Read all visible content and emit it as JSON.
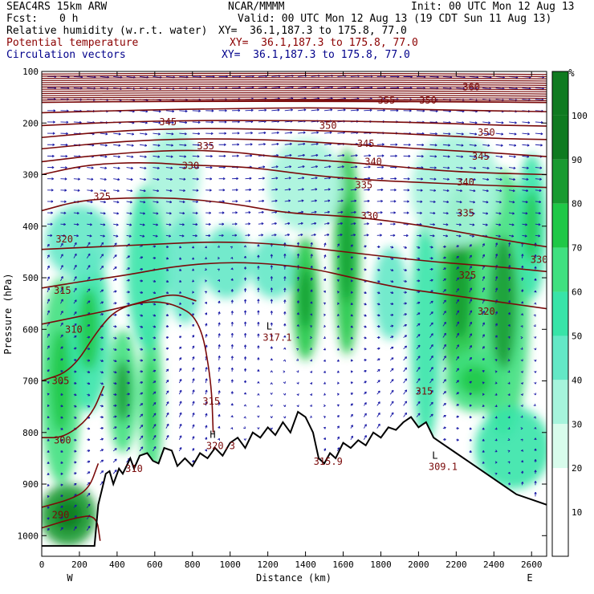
{
  "header": {
    "model": "SEAC4RS 15km ARW",
    "center": "NCAR/MMMM",
    "init": "Init: 00 UTC Mon 12 Aug 13",
    "fcst_label": "Fcst:",
    "fcst_value": "0 h",
    "valid": "Valid: 00 UTC Mon 12 Aug 13 (19 CDT Sun 11 Aug 13)"
  },
  "fields": [
    {
      "name": "Relative humidity (w.r.t. water)",
      "xy": "XY=  36.1,187.3 to 175.8, 77.0",
      "color": "#000000"
    },
    {
      "name": "Potential temperature",
      "xy": "XY=  36.1,187.3 to 175.8, 77.0",
      "color": "#8b0000"
    },
    {
      "name": "Circulation vectors",
      "xy": "XY=  36.1,187.3 to 175.8, 77.0",
      "color": "#00008b"
    }
  ],
  "chart_data": {
    "type": "heatmap",
    "xlabel": "Distance (km)",
    "ylabel": "Pressure (hPa)",
    "xlim": [
      0,
      2680
    ],
    "ylim": [
      1040,
      100
    ],
    "x_ticks": [
      0,
      200,
      400,
      600,
      800,
      1000,
      1200,
      1400,
      1600,
      1800,
      2000,
      2200,
      2400,
      2600
    ],
    "y_ticks": [
      100,
      200,
      300,
      400,
      500,
      600,
      700,
      800,
      900,
      1000
    ],
    "x_end_labels": {
      "left": "W",
      "right": "E"
    },
    "colorbar": {
      "unit": "%",
      "levels": [
        10,
        20,
        30,
        40,
        50,
        60,
        70,
        80,
        90,
        100
      ],
      "colors": [
        "#ffffff",
        "#ffffff",
        "#d8fcec",
        "#a6f4dc",
        "#64e8c6",
        "#38e4a8",
        "#40e080",
        "#1fc847",
        "#189a30",
        "#0f7a20"
      ]
    },
    "theta_contours": [
      {
        "value": 290,
        "points": [
          [
            0,
            985
          ],
          [
            180,
            965
          ],
          [
            290,
            960
          ],
          [
            310,
            1010
          ]
        ]
      },
      {
        "value": 295,
        "points": [
          [
            0,
            945
          ],
          [
            150,
            930
          ],
          [
            250,
            910
          ],
          [
            300,
            860
          ]
        ]
      },
      {
        "value": 300,
        "points": [
          [
            0,
            810
          ],
          [
            120,
            810
          ],
          [
            260,
            770
          ],
          [
            330,
            710
          ]
        ]
      },
      {
        "value": 305,
        "points": [
          [
            0,
            700
          ],
          [
            160,
            680
          ],
          [
            300,
            600
          ],
          [
            400,
            560
          ],
          [
            560,
            545
          ],
          [
            700,
            550
          ],
          [
            840,
            580
          ],
          [
            900,
            700
          ],
          [
            910,
            800
          ]
        ]
      },
      {
        "value": 310,
        "points": [
          [
            0,
            590
          ],
          [
            200,
            575
          ],
          [
            400,
            560
          ],
          [
            550,
            545
          ],
          [
            700,
            530
          ],
          [
            820,
            545
          ]
        ]
      },
      {
        "value": 315,
        "points": [
          [
            0,
            520
          ],
          [
            250,
            505
          ],
          [
            450,
            495
          ],
          [
            700,
            478
          ],
          [
            950,
            470
          ],
          [
            1200,
            472
          ],
          [
            1450,
            483
          ],
          [
            1650,
            500
          ],
          [
            1900,
            520
          ],
          [
            2100,
            530
          ],
          [
            2680,
            560
          ]
        ]
      },
      {
        "value": 320,
        "points": [
          [
            0,
            445
          ],
          [
            300,
            440
          ],
          [
            600,
            435
          ],
          [
            900,
            430
          ],
          [
            1200,
            433
          ],
          [
            1500,
            445
          ],
          [
            1800,
            458
          ],
          [
            2100,
            470
          ],
          [
            2400,
            478
          ],
          [
            2680,
            488
          ]
        ]
      },
      {
        "value": 325,
        "points": [
          [
            0,
            370
          ],
          [
            200,
            350
          ],
          [
            450,
            345
          ],
          [
            700,
            345
          ],
          [
            1000,
            355
          ],
          [
            1300,
            375
          ],
          [
            1600,
            380
          ],
          [
            1900,
            392
          ],
          [
            2200,
            410
          ],
          [
            2500,
            430
          ],
          [
            2680,
            440
          ]
        ]
      },
      {
        "value": 330,
        "points": [
          [
            0,
            300
          ],
          [
            250,
            280
          ],
          [
            550,
            276
          ],
          [
            800,
            282
          ],
          [
            1100,
            285
          ],
          [
            1400,
            300
          ],
          [
            1700,
            310
          ],
          [
            2000,
            315
          ],
          [
            2300,
            320
          ],
          [
            2680,
            325
          ]
        ]
      },
      {
        "value": 335,
        "points": [
          [
            0,
            275
          ],
          [
            300,
            262
          ],
          [
            700,
            252
          ],
          [
            1000,
            255
          ],
          [
            1300,
            268
          ],
          [
            1600,
            275
          ],
          [
            1900,
            285
          ],
          [
            2200,
            295
          ],
          [
            2680,
            300
          ]
        ]
      },
      {
        "value": 340,
        "points": [
          [
            0,
            250
          ],
          [
            400,
            236
          ],
          [
            800,
            230
          ],
          [
            1200,
            232
          ],
          [
            1600,
            240
          ],
          [
            2000,
            250
          ],
          [
            2400,
            258
          ],
          [
            2680,
            265
          ]
        ]
      },
      {
        "value": 345,
        "points": [
          [
            0,
            228
          ],
          [
            400,
            215
          ],
          [
            800,
            210
          ],
          [
            1200,
            212
          ],
          [
            1600,
            216
          ],
          [
            2000,
            222
          ],
          [
            2400,
            230
          ],
          [
            2680,
            232
          ]
        ]
      },
      {
        "value": 350,
        "points": [
          [
            0,
            205
          ],
          [
            400,
            198
          ],
          [
            800,
            195
          ],
          [
            1200,
            195
          ],
          [
            1600,
            196
          ],
          [
            2000,
            199
          ],
          [
            2400,
            204
          ],
          [
            2680,
            206
          ]
        ]
      },
      {
        "value": 355,
        "points": [
          [
            0,
            180
          ],
          [
            500,
            175
          ],
          [
            1000,
            172
          ],
          [
            1500,
            170
          ],
          [
            2000,
            174
          ],
          [
            2680,
            178
          ]
        ]
      },
      {
        "value": 360,
        "points": [
          [
            0,
            160
          ],
          [
            500,
            158
          ],
          [
            1000,
            157
          ],
          [
            1500,
            156
          ],
          [
            2000,
            158
          ],
          [
            2680,
            160
          ]
        ]
      }
    ],
    "contour_labels": [
      {
        "text": "345",
        "x": 670,
        "y": 198
      },
      {
        "text": "335",
        "x": 870,
        "y": 245
      },
      {
        "text": "330",
        "x": 790,
        "y": 283
      },
      {
        "text": "325",
        "x": 320,
        "y": 343
      },
      {
        "text": "320",
        "x": 120,
        "y": 425
      },
      {
        "text": "315",
        "x": 110,
        "y": 525
      },
      {
        "text": "310",
        "x": 170,
        "y": 600
      },
      {
        "text": "305",
        "x": 100,
        "y": 700
      },
      {
        "text": "300",
        "x": 110,
        "y": 815
      },
      {
        "text": "290",
        "x": 100,
        "y": 960
      },
      {
        "text": "350",
        "x": 1520,
        "y": 205
      },
      {
        "text": "345",
        "x": 1720,
        "y": 240
      },
      {
        "text": "340",
        "x": 1760,
        "y": 275
      },
      {
        "text": "335",
        "x": 1710,
        "y": 320
      },
      {
        "text": "330",
        "x": 1740,
        "y": 380
      },
      {
        "text": "335",
        "x": 2250,
        "y": 375
      },
      {
        "text": "340",
        "x": 2250,
        "y": 315
      },
      {
        "text": "345",
        "x": 2330,
        "y": 265
      },
      {
        "text": "350",
        "x": 2360,
        "y": 218
      },
      {
        "text": "355",
        "x": 1830,
        "y": 156
      },
      {
        "text": "350",
        "x": 2050,
        "y": 156
      },
      {
        "text": "360",
        "x": 2280,
        "y": 130
      },
      {
        "text": "325",
        "x": 2260,
        "y": 495
      },
      {
        "text": "320",
        "x": 2360,
        "y": 565
      },
      {
        "text": "330",
        "x": 2640,
        "y": 465
      },
      {
        "text": "315",
        "x": 900,
        "y": 740
      },
      {
        "text": "315",
        "x": 2030,
        "y": 720
      },
      {
        "text": "310",
        "x": 490,
        "y": 870
      }
    ],
    "extrema_labels": [
      {
        "mark": "L",
        "value": "317.1",
        "x": 1250,
        "y": 610
      },
      {
        "mark": "H",
        "value": "320.3",
        "x": 950,
        "y": 820
      },
      {
        "mark": "",
        "value": "315.9",
        "x": 1520,
        "y": 850
      },
      {
        "mark": "L",
        "value": "309.1",
        "x": 2130,
        "y": 860
      }
    ],
    "terrain": [
      [
        0,
        1020
      ],
      [
        280,
        1020
      ],
      [
        300,
        940
      ],
      [
        340,
        880
      ],
      [
        360,
        875
      ],
      [
        380,
        900
      ],
      [
        410,
        870
      ],
      [
        430,
        880
      ],
      [
        470,
        850
      ],
      [
        490,
        870
      ],
      [
        520,
        845
      ],
      [
        560,
        840
      ],
      [
        590,
        855
      ],
      [
        620,
        860
      ],
      [
        650,
        830
      ],
      [
        690,
        835
      ],
      [
        720,
        865
      ],
      [
        760,
        850
      ],
      [
        800,
        865
      ],
      [
        840,
        840
      ],
      [
        880,
        850
      ],
      [
        920,
        830
      ],
      [
        960,
        845
      ],
      [
        1000,
        820
      ],
      [
        1040,
        810
      ],
      [
        1080,
        830
      ],
      [
        1120,
        800
      ],
      [
        1160,
        810
      ],
      [
        1200,
        790
      ],
      [
        1240,
        805
      ],
      [
        1280,
        780
      ],
      [
        1320,
        800
      ],
      [
        1360,
        760
      ],
      [
        1400,
        770
      ],
      [
        1440,
        800
      ],
      [
        1470,
        850
      ],
      [
        1500,
        860
      ],
      [
        1530,
        840
      ],
      [
        1560,
        850
      ],
      [
        1600,
        820
      ],
      [
        1640,
        830
      ],
      [
        1680,
        815
      ],
      [
        1720,
        825
      ],
      [
        1760,
        800
      ],
      [
        1800,
        810
      ],
      [
        1840,
        790
      ],
      [
        1880,
        795
      ],
      [
        1920,
        780
      ],
      [
        1960,
        770
      ],
      [
        2000,
        790
      ],
      [
        2040,
        780
      ],
      [
        2080,
        810
      ],
      [
        2120,
        820
      ],
      [
        2200,
        840
      ],
      [
        2280,
        860
      ],
      [
        2360,
        880
      ],
      [
        2440,
        900
      ],
      [
        2520,
        920
      ],
      [
        2600,
        930
      ],
      [
        2680,
        940
      ]
    ],
    "rh_blobs": [
      {
        "x": 140,
        "p": 960,
        "rx": 150,
        "rp": 60,
        "value": 90
      },
      {
        "x": 100,
        "p": 700,
        "rx": 110,
        "rp": 200,
        "value": 62
      },
      {
        "x": 250,
        "p": 600,
        "rx": 110,
        "rp": 160,
        "value": 60
      },
      {
        "x": 200,
        "p": 430,
        "rx": 180,
        "rp": 70,
        "value": 48
      },
      {
        "x": 430,
        "p": 720,
        "rx": 80,
        "rp": 120,
        "value": 70
      },
      {
        "x": 580,
        "p": 740,
        "rx": 60,
        "rp": 160,
        "value": 62
      },
      {
        "x": 560,
        "p": 480,
        "rx": 110,
        "rp": 160,
        "value": 52
      },
      {
        "x": 760,
        "p": 470,
        "rx": 100,
        "rp": 120,
        "value": 45
      },
      {
        "x": 980,
        "p": 470,
        "rx": 130,
        "rp": 70,
        "value": 45
      },
      {
        "x": 1230,
        "p": 480,
        "rx": 120,
        "rp": 60,
        "value": 45
      },
      {
        "x": 1400,
        "p": 540,
        "rx": 70,
        "rp": 120,
        "value": 74
      },
      {
        "x": 1620,
        "p": 450,
        "rx": 70,
        "rp": 200,
        "value": 72
      },
      {
        "x": 1850,
        "p": 530,
        "rx": 90,
        "rp": 90,
        "value": 42
      },
      {
        "x": 2040,
        "p": 600,
        "rx": 80,
        "rp": 220,
        "value": 55
      },
      {
        "x": 2220,
        "p": 520,
        "rx": 110,
        "rp": 200,
        "value": 74
      },
      {
        "x": 2450,
        "p": 550,
        "rx": 140,
        "rp": 260,
        "value": 70
      },
      {
        "x": 2600,
        "p": 400,
        "rx": 80,
        "rp": 140,
        "value": 60
      },
      {
        "x": 2500,
        "p": 830,
        "rx": 200,
        "rp": 80,
        "value": 58
      },
      {
        "x": 2300,
        "p": 700,
        "rx": 160,
        "rp": 60,
        "value": 62
      },
      {
        "x": 700,
        "p": 300,
        "rx": 140,
        "rp": 90,
        "value": 32
      },
      {
        "x": 1400,
        "p": 320,
        "rx": 200,
        "rp": 90,
        "value": 34
      },
      {
        "x": 2200,
        "p": 330,
        "rx": 240,
        "rp": 110,
        "value": 35
      }
    ]
  }
}
